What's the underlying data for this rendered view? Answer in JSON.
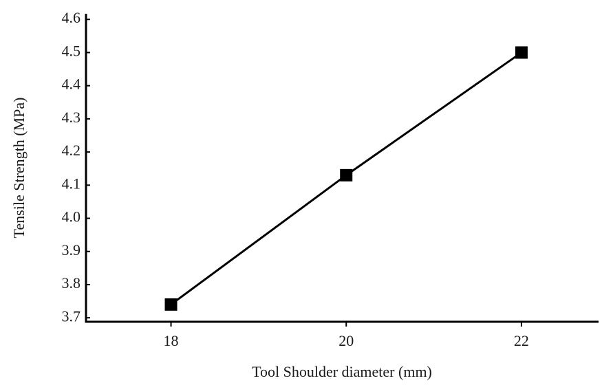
{
  "chart_data": {
    "type": "line",
    "x_label": "Tool Shoulder diameter (mm)",
    "y_label": "Tensile Strength (MPa)",
    "x": [
      18,
      20,
      22
    ],
    "series": [
      {
        "name": "Tensile Strength",
        "color": "#000000",
        "values": [
          3.74,
          4.13,
          4.5
        ]
      }
    ],
    "xlim": [
      17.03,
      22.88
    ],
    "xticks": [
      18,
      20,
      22
    ],
    "ylim": [
      3.688,
      4.617
    ],
    "yticks": [
      3.7,
      3.8,
      3.9,
      {
        "value": 4,
        "label": "4.0"
      },
      4.1,
      4.2,
      4.3,
      4.4,
      4.5,
      4.6
    ],
    "grid": false
  }
}
